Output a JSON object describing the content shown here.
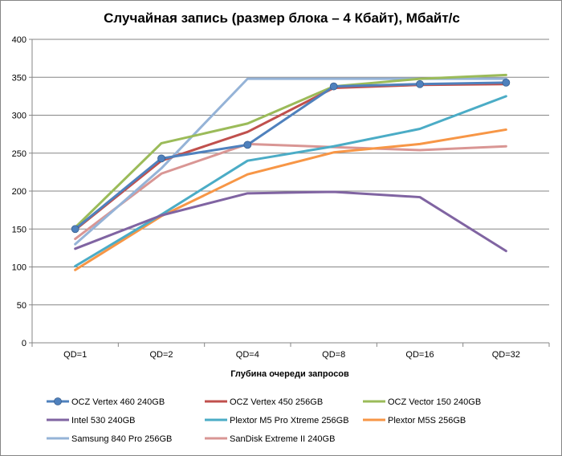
{
  "chart_data": {
    "type": "line",
    "title": "Случайная запись (размер блока – 4 Кбайт), Мбайт/с",
    "xlabel": "Глубина очереди запросов",
    "ylabel": "",
    "categories": [
      "QD=1",
      "QD=2",
      "QD=4",
      "QD=8",
      "QD=16",
      "QD=32"
    ],
    "ylim": [
      0,
      400
    ],
    "yticks": [
      0,
      50,
      100,
      150,
      200,
      250,
      300,
      350,
      400
    ],
    "grid": true,
    "legend_position": "bottom",
    "series": [
      {
        "name": "OCZ Vertex 460 240GB",
        "color": "#4f81bd",
        "markers": true,
        "values": [
          150,
          243,
          261,
          338,
          341,
          343
        ]
      },
      {
        "name": "OCZ Vertex 450 256GB",
        "color": "#c0504d",
        "markers": false,
        "values": [
          149,
          240,
          278,
          336,
          340,
          341
        ]
      },
      {
        "name": "OCZ Vector 150 240GB",
        "color": "#9bbb59",
        "markers": false,
        "values": [
          152,
          263,
          289,
          338,
          348,
          353
        ]
      },
      {
        "name": "Intel 530 240GB",
        "color": "#8064a2",
        "markers": false,
        "values": [
          124,
          168,
          197,
          199,
          192,
          121
        ]
      },
      {
        "name": "Plextor M5 Pro Xtreme 256GB",
        "color": "#4bacc6",
        "markers": false,
        "values": [
          101,
          169,
          240,
          259,
          282,
          325
        ]
      },
      {
        "name": "Plextor M5S 256GB",
        "color": "#f79646",
        "markers": false,
        "values": [
          96,
          167,
          222,
          251,
          262,
          281
        ]
      },
      {
        "name": "Samsung 840 Pro 256GB",
        "color": "#95b3d7",
        "markers": false,
        "values": [
          130,
          230,
          348,
          348,
          348,
          348
        ]
      },
      {
        "name": "SanDisk Extreme II 240GB",
        "color": "#d99694",
        "markers": false,
        "values": [
          137,
          223,
          262,
          258,
          254,
          259
        ]
      }
    ]
  }
}
